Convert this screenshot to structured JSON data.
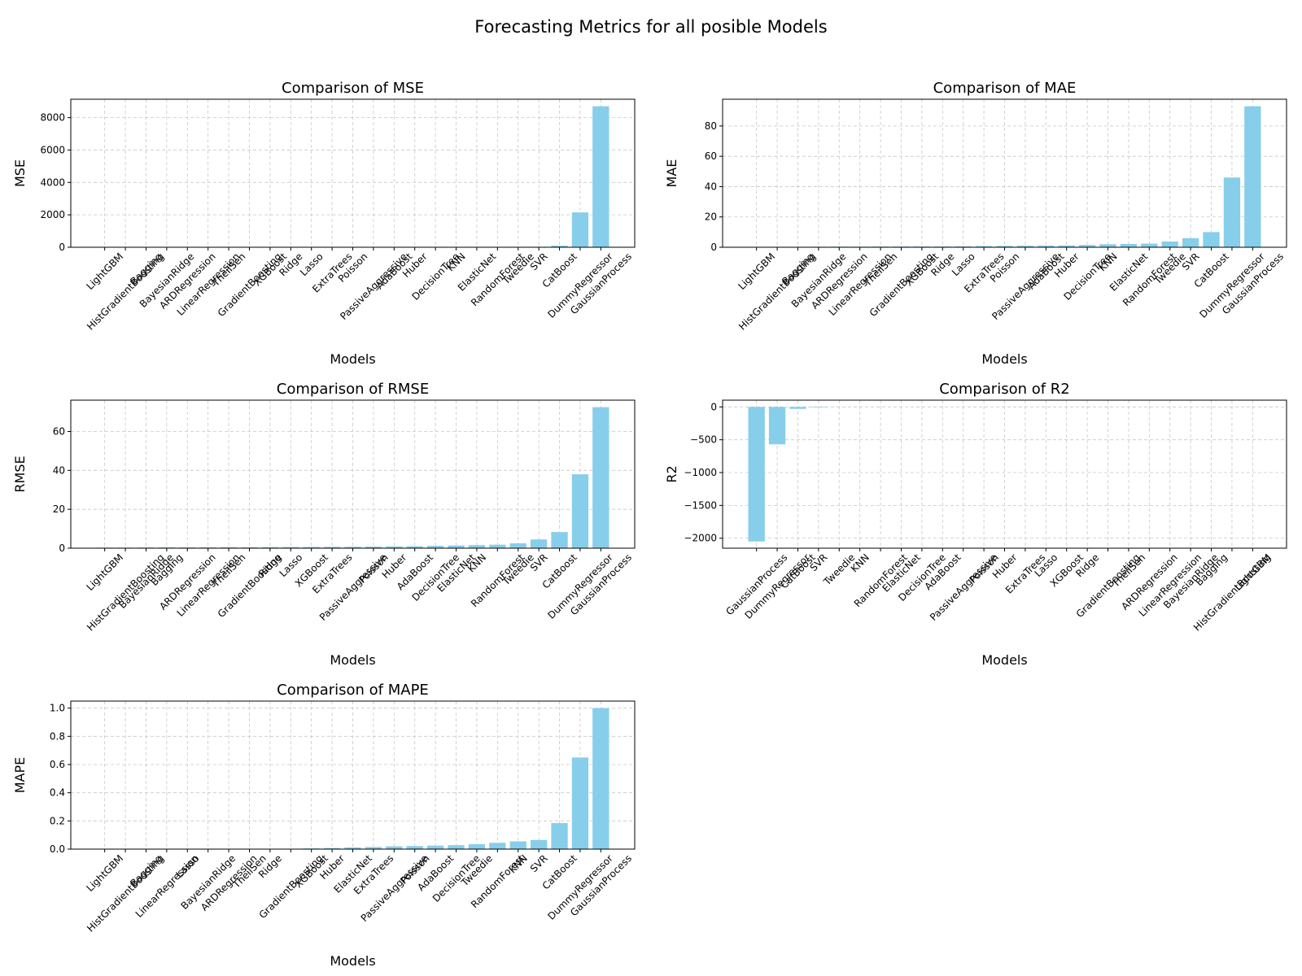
{
  "title": "Forecasting Metrics for all posible Models",
  "chart_data": [
    {
      "type": "bar",
      "title": "Comparison of MSE",
      "xlabel": "Models",
      "ylabel": "MSE",
      "categories": [
        "LightGBM",
        "HistGradientBoosting",
        "Bagging",
        "BayesianRidge",
        "ARDRegression",
        "LinearRegression",
        "TheilSen",
        "GradientBoosting",
        "XGBoost",
        "Ridge",
        "Lasso",
        "ExtraTrees",
        "Poisson",
        "PassiveAggressive",
        "AdaBoost",
        "Huber",
        "DecisionTree",
        "KNN",
        "ElasticNet",
        "RandomForest",
        "Tweedie",
        "SVR",
        "CatBoost",
        "DummyRegressor",
        "GaussianProcess"
      ],
      "values": [
        0.1,
        0.1,
        0.1,
        0.2,
        0.2,
        0.2,
        0.3,
        0.3,
        0.3,
        0.4,
        0.4,
        0.6,
        0.8,
        1,
        1.2,
        1.5,
        2,
        3,
        4,
        5,
        15,
        30,
        100,
        2150,
        8700
      ],
      "color": "#87ceeb",
      "ylim": [
        0,
        9135
      ],
      "yticks": [
        0,
        2000,
        4000,
        6000,
        8000
      ],
      "grid": true
    },
    {
      "type": "bar",
      "title": "Comparison of MAE",
      "xlabel": "Models",
      "ylabel": "MAE",
      "categories": [
        "LightGBM",
        "HistGradientBoosting",
        "Bagging",
        "BayesianRidge",
        "ARDRegression",
        "LinearRegression",
        "TheilSen",
        "GradientBoosting",
        "XGBoost",
        "Ridge",
        "Lasso",
        "ExtraTrees",
        "Poisson",
        "PassiveAggressive",
        "AdaBoost",
        "Huber",
        "DecisionTree",
        "KNN",
        "ElasticNet",
        "RandomForest",
        "Tweedie",
        "SVR",
        "CatBoost",
        "DummyRegressor",
        "GaussianProcess"
      ],
      "values": [
        0.2,
        0.3,
        0.3,
        0.35,
        0.4,
        0.4,
        0.45,
        0.5,
        0.5,
        0.5,
        0.6,
        0.8,
        0.9,
        1,
        1.1,
        1.2,
        1.5,
        2,
        2.2,
        2.4,
        3.8,
        6,
        10,
        46,
        93
      ],
      "color": "#87ceeb",
      "ylim": [
        0,
        97.65
      ],
      "yticks": [
        0,
        20,
        40,
        60,
        80
      ],
      "grid": true
    },
    {
      "type": "bar",
      "title": "Comparison of RMSE",
      "xlabel": "Models",
      "ylabel": "RMSE",
      "categories": [
        "LightGBM",
        "HistGradientBoosting",
        "BayesianRidge",
        "Bagging",
        "ARDRegression",
        "LinearRegression",
        "TheilSen",
        "GradientBoosting",
        "Ridge",
        "Lasso",
        "XGBoost",
        "ExtraTrees",
        "PassiveAggressive",
        "Poisson",
        "Huber",
        "AdaBoost",
        "DecisionTree",
        "ElasticNet",
        "KNN",
        "RandomForest",
        "Tweedie",
        "SVR",
        "CatBoost",
        "DummyRegressor",
        "GaussianProcess"
      ],
      "values": [
        0.3,
        0.3,
        0.35,
        0.4,
        0.4,
        0.45,
        0.5,
        0.5,
        0.55,
        0.6,
        0.65,
        0.7,
        0.75,
        0.8,
        0.9,
        1,
        1.2,
        1.4,
        1.6,
        1.8,
        2.5,
        4.5,
        8.3,
        38,
        72.5
      ],
      "color": "#87ceeb",
      "ylim": [
        0,
        76.1
      ],
      "yticks": [
        0,
        20,
        40,
        60
      ],
      "grid": true
    },
    {
      "type": "bar",
      "title": "Comparison of R2",
      "xlabel": "Models",
      "ylabel": "R2",
      "categories": [
        "GaussianProcess",
        "DummyRegressor",
        "CatBoost",
        "SVR",
        "Tweedie",
        "KNN",
        "RandomForest",
        "ElasticNet",
        "DecisionTree",
        "AdaBoost",
        "PassiveAggressive",
        "Poisson",
        "Huber",
        "ExtraTrees",
        "Lasso",
        "XGBoost",
        "Ridge",
        "GradientBoosting",
        "TheilSen",
        "ARDRegression",
        "LinearRegression",
        "BayesianRidge",
        "Bagging",
        "HistGradientBoosting",
        "LightGBM"
      ],
      "values": [
        -2050,
        -570,
        -30,
        -8,
        -2,
        -0.5,
        -0.3,
        0.1,
        0.2,
        0.3,
        0.4,
        0.5,
        0.6,
        0.6,
        0.7,
        0.7,
        0.7,
        0.8,
        0.8,
        0.8,
        0.8,
        0.9,
        0.9,
        0.9,
        0.9
      ],
      "color": "#87ceeb",
      "ylim": [
        -2152,
        103
      ],
      "yticks": [
        {
          "value": -2000,
          "label": "−2000"
        },
        {
          "value": -1500,
          "label": "−1500"
        },
        {
          "value": -1000,
          "label": "−1000"
        },
        {
          "value": -500,
          "label": "−500"
        },
        0
      ],
      "grid": true
    },
    {
      "type": "bar",
      "title": "Comparison of MAPE",
      "xlabel": "Models",
      "ylabel": "MAPE",
      "categories": [
        "LightGBM",
        "HistGradientBoosting",
        "Bagging",
        "LinearRegression",
        "Lasso",
        "BayesianRidge",
        "ARDRegression",
        "TheilSen",
        "Ridge",
        "GradientBoosting",
        "XGBoost",
        "Huber",
        "ElasticNet",
        "ExtraTrees",
        "PassiveAggressive",
        "Poisson",
        "AdaBoost",
        "DecisionTree",
        "Tweedie",
        "RandomForest",
        "KNN",
        "SVR",
        "CatBoost",
        "DummyRegressor",
        "GaussianProcess"
      ],
      "values": [
        0.001,
        0.001,
        0.001,
        0.001,
        0.001,
        0.001,
        0.001,
        0.002,
        0.002,
        0.002,
        0.005,
        0.008,
        0.012,
        0.015,
        0.02,
        0.022,
        0.025,
        0.028,
        0.035,
        0.045,
        0.055,
        0.065,
        0.185,
        0.65,
        1.0
      ],
      "color": "#87ceeb",
      "ylim": [
        0,
        1.05
      ],
      "yticks": [
        {
          "value": 0,
          "label": "0.0"
        },
        0.2,
        0.4,
        0.6,
        0.8,
        {
          "value": 1,
          "label": "1.0"
        }
      ],
      "grid": true
    }
  ]
}
